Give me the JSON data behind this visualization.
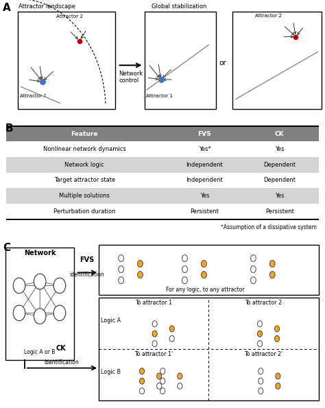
{
  "table_header_color": "#808080",
  "table_alt_row_color": "#d4d4d4",
  "table_row_color": "#ffffff",
  "header_text_color": "#ffffff",
  "table_rows": [
    [
      "Nonlinear network dynamics",
      "Yes*",
      "Yes"
    ],
    [
      "Network logic",
      "Independent",
      "Dependent"
    ],
    [
      "Target attractor state",
      "Independent",
      "Dependent"
    ],
    [
      "Multiple solutions",
      "Yes",
      "Yes"
    ],
    [
      "Perturbation duration",
      "Persistent",
      "Persistent"
    ]
  ],
  "footnote": "*Assumption of a dissipative system",
  "node_color_orange": "#F5A623",
  "node_color_white": "#ffffff",
  "node_edge_color": "#444444",
  "attractor1_color": "#4472C4",
  "attractor2_color": "#C00000",
  "bg_color": "#ffffff",
  "text_color": "#000000",
  "row_alt": [
    false,
    true,
    false,
    true,
    false
  ]
}
